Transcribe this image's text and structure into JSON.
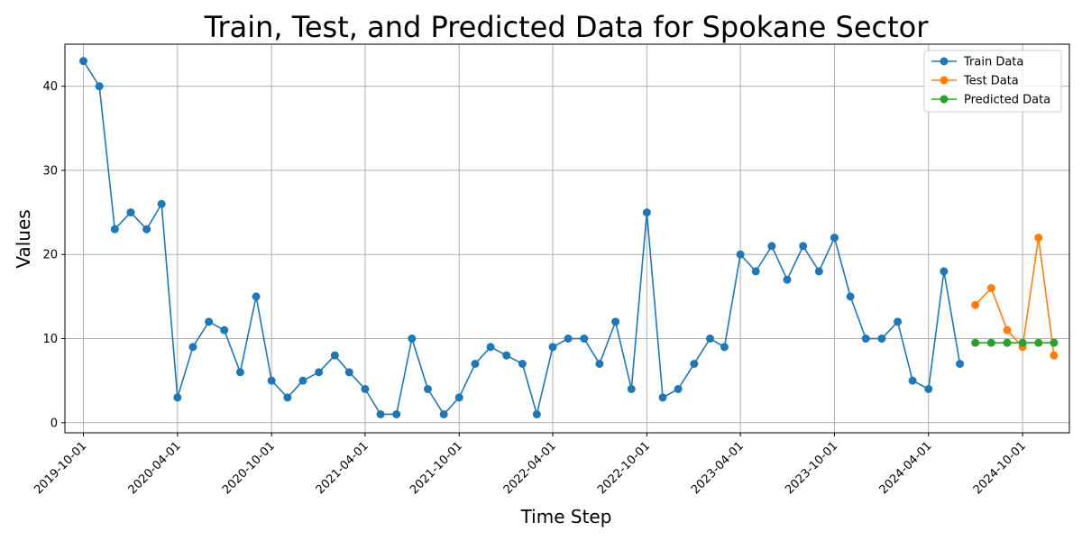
{
  "chart_data": {
    "type": "line",
    "title": "Train, Test, and Predicted Data for Spokane Sector",
    "xlabel": "Time Step",
    "ylabel": "Values",
    "xlim": [
      "2019-08-26",
      "2024-12-31"
    ],
    "ylim": [
      -1.2,
      45
    ],
    "y_ticks": [
      0,
      10,
      20,
      30,
      40
    ],
    "x_ticks": [
      "2019-10-01",
      "2020-04-01",
      "2020-10-01",
      "2021-04-01",
      "2021-10-01",
      "2022-04-01",
      "2022-10-01",
      "2023-04-01",
      "2023-10-01",
      "2024-04-01",
      "2024-10-01"
    ],
    "grid": true,
    "legend_position": "top-right",
    "series": [
      {
        "name": "Train Data",
        "color": "#1f77b4",
        "x": [
          "2019-10-01",
          "2019-11-01",
          "2019-12-01",
          "2020-01-01",
          "2020-02-01",
          "2020-03-01",
          "2020-04-01",
          "2020-05-01",
          "2020-06-01",
          "2020-07-01",
          "2020-08-01",
          "2020-09-01",
          "2020-10-01",
          "2020-11-01",
          "2020-12-01",
          "2021-01-01",
          "2021-02-01",
          "2021-03-01",
          "2021-04-01",
          "2021-05-01",
          "2021-06-01",
          "2021-07-01",
          "2021-08-01",
          "2021-09-01",
          "2021-10-01",
          "2021-11-01",
          "2021-12-01",
          "2022-01-01",
          "2022-02-01",
          "2022-03-01",
          "2022-04-01",
          "2022-05-01",
          "2022-06-01",
          "2022-07-01",
          "2022-08-01",
          "2022-09-01",
          "2022-10-01",
          "2022-11-01",
          "2022-12-01",
          "2023-01-01",
          "2023-02-01",
          "2023-03-01",
          "2023-04-01",
          "2023-05-01",
          "2023-06-01",
          "2023-07-01",
          "2023-08-01",
          "2023-09-01",
          "2023-10-01",
          "2023-11-01",
          "2023-12-01",
          "2024-01-01",
          "2024-02-01",
          "2024-03-01",
          "2024-04-01",
          "2024-05-01",
          "2024-06-01"
        ],
        "values": [
          43,
          40,
          23,
          25,
          23,
          26,
          3,
          9,
          12,
          11,
          6,
          15,
          5,
          3,
          5,
          6,
          8,
          6,
          4,
          1,
          1,
          10,
          4,
          1,
          3,
          7,
          9,
          8,
          7,
          1,
          9,
          10,
          10,
          7,
          12,
          4,
          25,
          3,
          4,
          7,
          10,
          9,
          20,
          18,
          21,
          17,
          21,
          18,
          22,
          15,
          10,
          10,
          12,
          5,
          4,
          18,
          7
        ]
      },
      {
        "name": "Test Data",
        "color": "#ff7f0e",
        "x": [
          "2024-07-01",
          "2024-08-01",
          "2024-09-01",
          "2024-10-01",
          "2024-11-01",
          "2024-12-01"
        ],
        "values": [
          14,
          16,
          11,
          9,
          22,
          8
        ]
      },
      {
        "name": "Predicted Data",
        "color": "#2ca02c",
        "x": [
          "2024-07-01",
          "2024-08-01",
          "2024-09-01",
          "2024-10-01",
          "2024-11-01",
          "2024-12-01"
        ],
        "values": [
          9.5,
          9.5,
          9.5,
          9.5,
          9.5,
          9.5
        ]
      }
    ]
  }
}
